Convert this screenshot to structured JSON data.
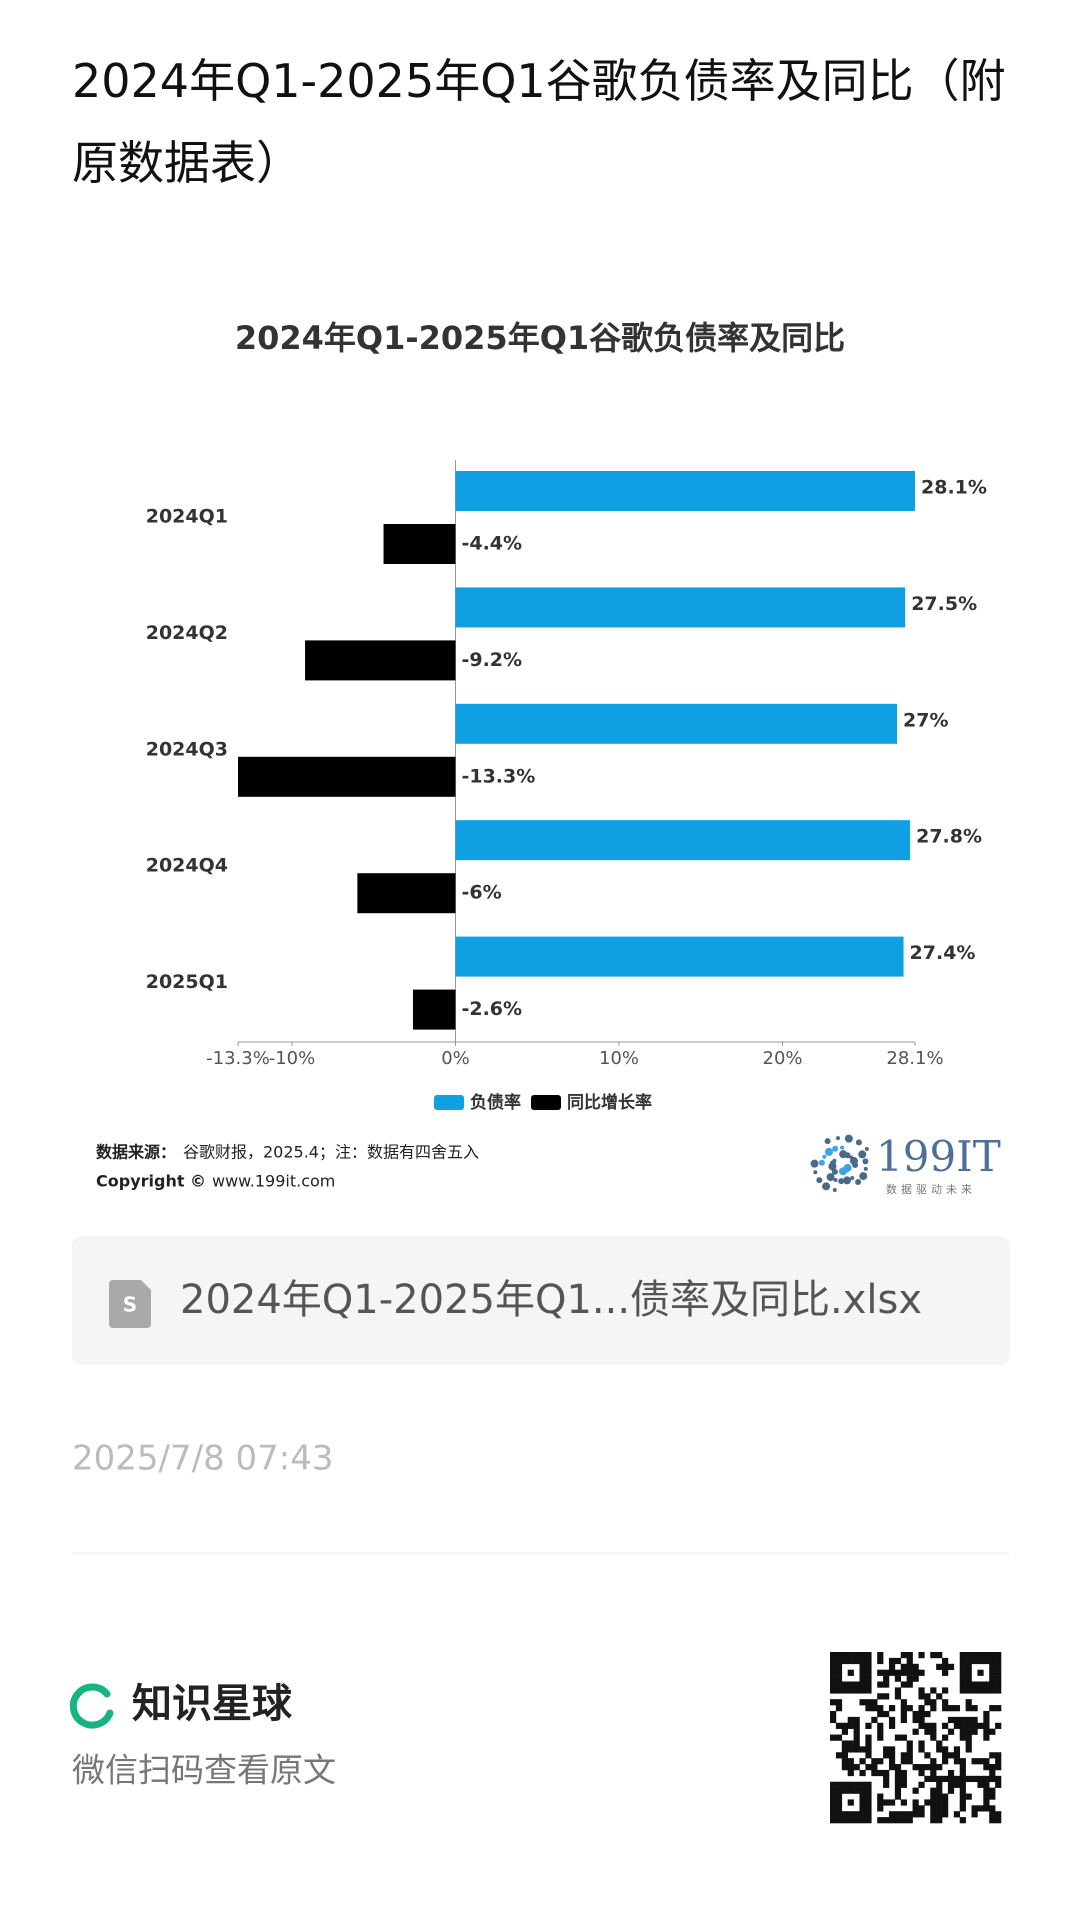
{
  "header": {
    "title": "2024年Q1-2025年Q1谷歌负债率及同比（附原数据表）"
  },
  "chart_data": {
    "type": "hbar",
    "title": "2024年Q1-2025年Q1谷歌负债率及同比",
    "categories": [
      "2024Q1",
      "2024Q2",
      "2024Q3",
      "2024Q4",
      "2025Q1"
    ],
    "series": [
      {
        "name": "负债率",
        "color": "#0f9fe3",
        "values": [
          28.1,
          27.5,
          27,
          27.8,
          27.4
        ],
        "value_labels": [
          "28.1%",
          "27.5%",
          "27%",
          "27.8%",
          "27.4%"
        ]
      },
      {
        "name": "同比增长率",
        "color": "#000000",
        "values": [
          -4.4,
          -9.2,
          -13.3,
          -6,
          -2.6
        ],
        "value_labels": [
          "-4.4%",
          "-9.2%",
          "-13.3%",
          "-6%",
          "-2.6%"
        ]
      }
    ],
    "xlim": [
      -13.3,
      28.1
    ],
    "xticks": [
      {
        "value": -13.3,
        "label": "-13.3%"
      },
      {
        "value": -10,
        "label": "-10%"
      },
      {
        "value": 0,
        "label": "0%"
      },
      {
        "value": 10,
        "label": "10%"
      },
      {
        "value": 20,
        "label": "20%"
      },
      {
        "value": 28.1,
        "label": "28.1%"
      }
    ],
    "legend": "bottom"
  },
  "source": {
    "label": "数据来源：",
    "text": "谷歌财报，2025.4；注：数据有四舍五入",
    "copyright_label": "Copyright ©",
    "copyright_text": "www.199it.com"
  },
  "logo": {
    "name": "199IT",
    "slogan": "数据驱动未来"
  },
  "file": {
    "name": "2024年Q1-2025年Q1...债率及同比.xlsx"
  },
  "timestamp": "2025/7/8 07:43",
  "footer": {
    "brand": "知识星球",
    "hint": "微信扫码查看原文"
  }
}
